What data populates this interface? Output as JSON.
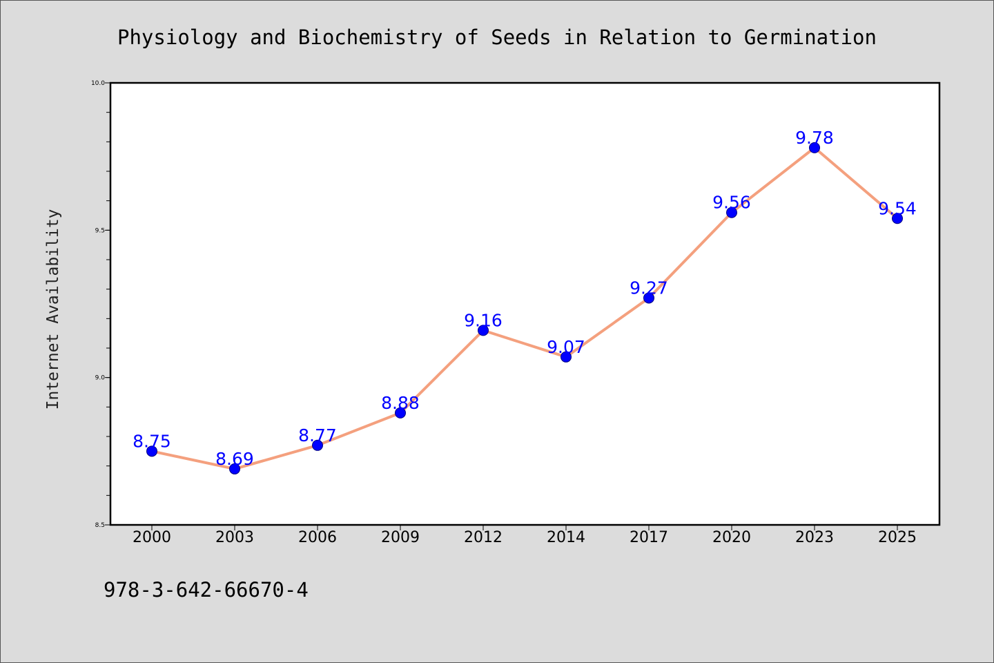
{
  "chart_data": {
    "type": "line",
    "title": "Physiology and Biochemistry of Seeds in Relation to Germination",
    "xlabel": "",
    "ylabel": "Internet Availability",
    "categories": [
      "2000",
      "2003",
      "2006",
      "2009",
      "2012",
      "2014",
      "2017",
      "2020",
      "2023",
      "2025"
    ],
    "series": [
      {
        "values": [
          8.75,
          8.69,
          8.77,
          8.88,
          9.16,
          9.07,
          9.27,
          9.56,
          9.78,
          9.54
        ],
        "labels": [
          "8.75",
          "8.69",
          "8.77",
          "8.88",
          "9.16",
          "9.07",
          "9.27",
          "9.56",
          "9.78",
          "9.54"
        ]
      }
    ],
    "ylim": [
      8.5,
      10.0
    ],
    "yticks": [
      "8.5",
      "9.0",
      "9.5",
      "10.0"
    ],
    "grid": false,
    "legend": "none",
    "colors": {
      "line": "#f4a07e",
      "marker": "#0000ff",
      "marker_edge": "#000080",
      "label": "#0000ff"
    }
  },
  "footer": {
    "isbn": "978-3-642-66670-4"
  }
}
